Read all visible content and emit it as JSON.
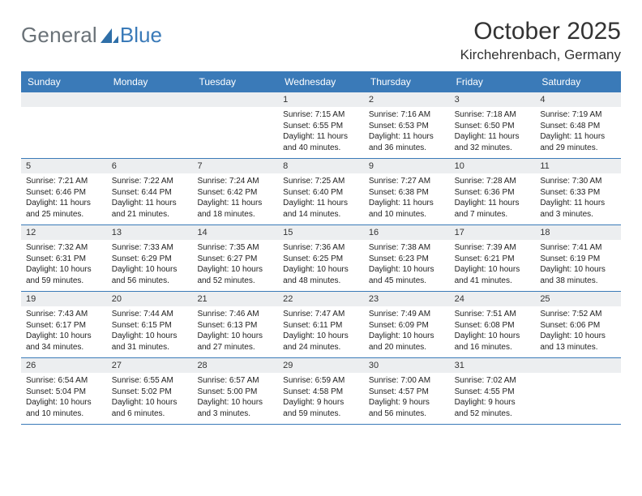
{
  "logo": {
    "text1": "General",
    "text2": "Blue"
  },
  "title": "October 2025",
  "location": "Kirchehrenbach, Germany",
  "colors": {
    "header_bg": "#3a7ab8",
    "header_text": "#ffffff",
    "date_bar_bg": "#eceef0",
    "body_text": "#222222",
    "logo_gray": "#6a7278",
    "logo_blue": "#3a7ab8",
    "row_divider": "#3a7ab8",
    "background": "#ffffff"
  },
  "day_names": [
    "Sunday",
    "Monday",
    "Tuesday",
    "Wednesday",
    "Thursday",
    "Friday",
    "Saturday"
  ],
  "weeks": [
    [
      null,
      null,
      null,
      {
        "date": "1",
        "sunrise": "Sunrise: 7:15 AM",
        "sunset": "Sunset: 6:55 PM",
        "daylight1": "Daylight: 11 hours",
        "daylight2": "and 40 minutes."
      },
      {
        "date": "2",
        "sunrise": "Sunrise: 7:16 AM",
        "sunset": "Sunset: 6:53 PM",
        "daylight1": "Daylight: 11 hours",
        "daylight2": "and 36 minutes."
      },
      {
        "date": "3",
        "sunrise": "Sunrise: 7:18 AM",
        "sunset": "Sunset: 6:50 PM",
        "daylight1": "Daylight: 11 hours",
        "daylight2": "and 32 minutes."
      },
      {
        "date": "4",
        "sunrise": "Sunrise: 7:19 AM",
        "sunset": "Sunset: 6:48 PM",
        "daylight1": "Daylight: 11 hours",
        "daylight2": "and 29 minutes."
      }
    ],
    [
      {
        "date": "5",
        "sunrise": "Sunrise: 7:21 AM",
        "sunset": "Sunset: 6:46 PM",
        "daylight1": "Daylight: 11 hours",
        "daylight2": "and 25 minutes."
      },
      {
        "date": "6",
        "sunrise": "Sunrise: 7:22 AM",
        "sunset": "Sunset: 6:44 PM",
        "daylight1": "Daylight: 11 hours",
        "daylight2": "and 21 minutes."
      },
      {
        "date": "7",
        "sunrise": "Sunrise: 7:24 AM",
        "sunset": "Sunset: 6:42 PM",
        "daylight1": "Daylight: 11 hours",
        "daylight2": "and 18 minutes."
      },
      {
        "date": "8",
        "sunrise": "Sunrise: 7:25 AM",
        "sunset": "Sunset: 6:40 PM",
        "daylight1": "Daylight: 11 hours",
        "daylight2": "and 14 minutes."
      },
      {
        "date": "9",
        "sunrise": "Sunrise: 7:27 AM",
        "sunset": "Sunset: 6:38 PM",
        "daylight1": "Daylight: 11 hours",
        "daylight2": "and 10 minutes."
      },
      {
        "date": "10",
        "sunrise": "Sunrise: 7:28 AM",
        "sunset": "Sunset: 6:36 PM",
        "daylight1": "Daylight: 11 hours",
        "daylight2": "and 7 minutes."
      },
      {
        "date": "11",
        "sunrise": "Sunrise: 7:30 AM",
        "sunset": "Sunset: 6:33 PM",
        "daylight1": "Daylight: 11 hours",
        "daylight2": "and 3 minutes."
      }
    ],
    [
      {
        "date": "12",
        "sunrise": "Sunrise: 7:32 AM",
        "sunset": "Sunset: 6:31 PM",
        "daylight1": "Daylight: 10 hours",
        "daylight2": "and 59 minutes."
      },
      {
        "date": "13",
        "sunrise": "Sunrise: 7:33 AM",
        "sunset": "Sunset: 6:29 PM",
        "daylight1": "Daylight: 10 hours",
        "daylight2": "and 56 minutes."
      },
      {
        "date": "14",
        "sunrise": "Sunrise: 7:35 AM",
        "sunset": "Sunset: 6:27 PM",
        "daylight1": "Daylight: 10 hours",
        "daylight2": "and 52 minutes."
      },
      {
        "date": "15",
        "sunrise": "Sunrise: 7:36 AM",
        "sunset": "Sunset: 6:25 PM",
        "daylight1": "Daylight: 10 hours",
        "daylight2": "and 48 minutes."
      },
      {
        "date": "16",
        "sunrise": "Sunrise: 7:38 AM",
        "sunset": "Sunset: 6:23 PM",
        "daylight1": "Daylight: 10 hours",
        "daylight2": "and 45 minutes."
      },
      {
        "date": "17",
        "sunrise": "Sunrise: 7:39 AM",
        "sunset": "Sunset: 6:21 PM",
        "daylight1": "Daylight: 10 hours",
        "daylight2": "and 41 minutes."
      },
      {
        "date": "18",
        "sunrise": "Sunrise: 7:41 AM",
        "sunset": "Sunset: 6:19 PM",
        "daylight1": "Daylight: 10 hours",
        "daylight2": "and 38 minutes."
      }
    ],
    [
      {
        "date": "19",
        "sunrise": "Sunrise: 7:43 AM",
        "sunset": "Sunset: 6:17 PM",
        "daylight1": "Daylight: 10 hours",
        "daylight2": "and 34 minutes."
      },
      {
        "date": "20",
        "sunrise": "Sunrise: 7:44 AM",
        "sunset": "Sunset: 6:15 PM",
        "daylight1": "Daylight: 10 hours",
        "daylight2": "and 31 minutes."
      },
      {
        "date": "21",
        "sunrise": "Sunrise: 7:46 AM",
        "sunset": "Sunset: 6:13 PM",
        "daylight1": "Daylight: 10 hours",
        "daylight2": "and 27 minutes."
      },
      {
        "date": "22",
        "sunrise": "Sunrise: 7:47 AM",
        "sunset": "Sunset: 6:11 PM",
        "daylight1": "Daylight: 10 hours",
        "daylight2": "and 24 minutes."
      },
      {
        "date": "23",
        "sunrise": "Sunrise: 7:49 AM",
        "sunset": "Sunset: 6:09 PM",
        "daylight1": "Daylight: 10 hours",
        "daylight2": "and 20 minutes."
      },
      {
        "date": "24",
        "sunrise": "Sunrise: 7:51 AM",
        "sunset": "Sunset: 6:08 PM",
        "daylight1": "Daylight: 10 hours",
        "daylight2": "and 16 minutes."
      },
      {
        "date": "25",
        "sunrise": "Sunrise: 7:52 AM",
        "sunset": "Sunset: 6:06 PM",
        "daylight1": "Daylight: 10 hours",
        "daylight2": "and 13 minutes."
      }
    ],
    [
      {
        "date": "26",
        "sunrise": "Sunrise: 6:54 AM",
        "sunset": "Sunset: 5:04 PM",
        "daylight1": "Daylight: 10 hours",
        "daylight2": "and 10 minutes."
      },
      {
        "date": "27",
        "sunrise": "Sunrise: 6:55 AM",
        "sunset": "Sunset: 5:02 PM",
        "daylight1": "Daylight: 10 hours",
        "daylight2": "and 6 minutes."
      },
      {
        "date": "28",
        "sunrise": "Sunrise: 6:57 AM",
        "sunset": "Sunset: 5:00 PM",
        "daylight1": "Daylight: 10 hours",
        "daylight2": "and 3 minutes."
      },
      {
        "date": "29",
        "sunrise": "Sunrise: 6:59 AM",
        "sunset": "Sunset: 4:58 PM",
        "daylight1": "Daylight: 9 hours",
        "daylight2": "and 59 minutes."
      },
      {
        "date": "30",
        "sunrise": "Sunrise: 7:00 AM",
        "sunset": "Sunset: 4:57 PM",
        "daylight1": "Daylight: 9 hours",
        "daylight2": "and 56 minutes."
      },
      {
        "date": "31",
        "sunrise": "Sunrise: 7:02 AM",
        "sunset": "Sunset: 4:55 PM",
        "daylight1": "Daylight: 9 hours",
        "daylight2": "and 52 minutes."
      },
      null
    ]
  ]
}
